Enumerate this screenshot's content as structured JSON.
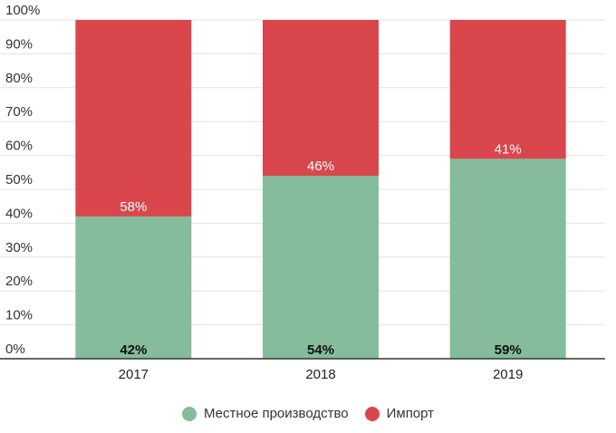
{
  "chart_data": {
    "type": "bar",
    "stacked": true,
    "percent": true,
    "categories": [
      "2017",
      "2018",
      "2019"
    ],
    "series": [
      {
        "name": "Местное производство",
        "values": [
          42,
          54,
          59
        ],
        "color": "#85bc9b",
        "labels": [
          "42%",
          "54%",
          "59%"
        ]
      },
      {
        "name": "Импорт",
        "values": [
          58,
          46,
          41
        ],
        "color": "#d9474d",
        "labels": [
          "58%",
          "46%",
          "41%"
        ]
      }
    ],
    "ylim": [
      0,
      100
    ],
    "yticks": [
      0,
      10,
      20,
      30,
      40,
      50,
      60,
      70,
      80,
      90,
      100
    ],
    "ytick_labels": [
      "0%",
      "10%",
      "20%",
      "30%",
      "40%",
      "50%",
      "60%",
      "70%",
      "80%",
      "90%",
      "100%"
    ],
    "grid": true,
    "legend_position": "bottom"
  }
}
